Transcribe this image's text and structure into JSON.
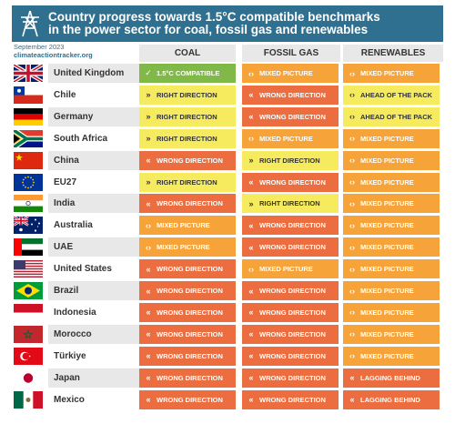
{
  "header": {
    "title_line1": "Country progress towards 1.5°C compatible benchmarks",
    "title_line2": "in the power sector for coal, fossil gas and renewables"
  },
  "source": {
    "date": "September 2023",
    "site": "climateactiontracker.org"
  },
  "columns": [
    "COAL",
    "FOSSIL GAS",
    "RENEWABLES"
  ],
  "status_styles": {
    "compatible": {
      "label": "1.5°C COMPATIBLE",
      "bg": "#80b947",
      "fg": "#ffffff",
      "icon": "✓"
    },
    "right": {
      "label": "RIGHT DIRECTION",
      "bg": "#f6eb5e",
      "fg": "#333333",
      "icon": "»"
    },
    "mixed": {
      "label": "MIXED PICTURE",
      "bg": "#f6a43a",
      "fg": "#ffffff",
      "icon": "‹›"
    },
    "wrong": {
      "label": "WRONG DIRECTION",
      "bg": "#ec6d3f",
      "fg": "#ffffff",
      "icon": "«"
    },
    "ahead": {
      "label": "AHEAD OF THE PACK",
      "bg": "#f6eb5e",
      "fg": "#333333",
      "icon": "‹›"
    },
    "lagging": {
      "label": "LAGGING BEHIND",
      "bg": "#ec6d3f",
      "fg": "#ffffff",
      "icon": "«"
    }
  },
  "rows": [
    {
      "country": "United Kingdom",
      "flag": "uk-flag-icon",
      "coal": "compatible",
      "gas": "mixed",
      "ren": "mixed"
    },
    {
      "country": "Chile",
      "flag": "chile-flag-icon",
      "coal": "right",
      "gas": "wrong",
      "ren": "ahead"
    },
    {
      "country": "Germany",
      "flag": "germany-flag-icon",
      "coal": "right",
      "gas": "wrong",
      "ren": "ahead"
    },
    {
      "country": "South Africa",
      "flag": "south-africa-flag-icon",
      "coal": "right",
      "gas": "mixed",
      "ren": "mixed"
    },
    {
      "country": "China",
      "flag": "china-flag-icon",
      "coal": "wrong",
      "gas": "right",
      "ren": "mixed"
    },
    {
      "country": "EU27",
      "flag": "eu-flag-icon",
      "coal": "right",
      "gas": "wrong",
      "ren": "mixed"
    },
    {
      "country": "India",
      "flag": "india-flag-icon",
      "coal": "wrong",
      "gas": "right",
      "ren": "mixed"
    },
    {
      "country": "Australia",
      "flag": "australia-flag-icon",
      "coal": "mixed",
      "gas": "wrong",
      "ren": "mixed"
    },
    {
      "country": "UAE",
      "flag": "uae-flag-icon",
      "coal": "mixed",
      "gas": "wrong",
      "ren": "mixed"
    },
    {
      "country": "United States",
      "flag": "usa-flag-icon",
      "coal": "wrong",
      "gas": "mixed",
      "ren": "mixed"
    },
    {
      "country": "Brazil",
      "flag": "brazil-flag-icon",
      "coal": "wrong",
      "gas": "wrong",
      "ren": "mixed"
    },
    {
      "country": "Indonesia",
      "flag": "indonesia-flag-icon",
      "coal": "wrong",
      "gas": "wrong",
      "ren": "mixed"
    },
    {
      "country": "Morocco",
      "flag": "morocco-flag-icon",
      "coal": "wrong",
      "gas": "wrong",
      "ren": "mixed"
    },
    {
      "country": "Türkiye",
      "flag": "turkiye-flag-icon",
      "coal": "wrong",
      "gas": "wrong",
      "ren": "mixed"
    },
    {
      "country": "Japan",
      "flag": "japan-flag-icon",
      "coal": "wrong",
      "gas": "wrong",
      "ren": "lagging"
    },
    {
      "country": "Mexico",
      "flag": "mexico-flag-icon",
      "coal": "wrong",
      "gas": "wrong",
      "ren": "lagging"
    }
  ]
}
